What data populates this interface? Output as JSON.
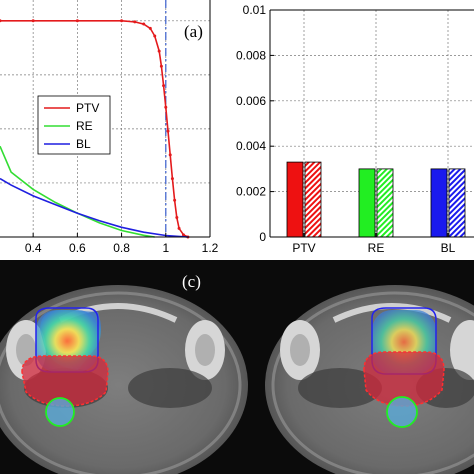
{
  "panels": {
    "a": "(a)",
    "c": "(c)"
  },
  "chart_data": [
    {
      "type": "line",
      "panel": "a",
      "xlim": [
        0.25,
        1.2
      ],
      "ylim": [
        0,
        1.05
      ],
      "x_ticks": [
        "0.4",
        "0.6",
        "0.8",
        "1",
        "1.2"
      ],
      "grid": true,
      "legend_position": "center-right",
      "reference_line": {
        "x": 1.0,
        "color": "#3a5fcd",
        "style": "dash-dot"
      },
      "series": [
        {
          "name": "PTV",
          "color": "#e41a1c",
          "marker": "dot",
          "x": [
            0.25,
            0.4,
            0.6,
            0.8,
            0.86,
            0.9,
            0.93,
            0.95,
            0.97,
            0.98,
            0.99,
            1.0,
            1.01,
            1.02,
            1.03,
            1.04,
            1.05,
            1.06,
            1.08,
            1.1
          ],
          "y": [
            1.0,
            1.0,
            1.0,
            1.0,
            0.995,
            0.985,
            0.965,
            0.93,
            0.86,
            0.79,
            0.7,
            0.6,
            0.49,
            0.38,
            0.27,
            0.17,
            0.09,
            0.04,
            0.01,
            0.0
          ]
        },
        {
          "name": "RE",
          "color": "#33dd33",
          "x": [
            0.25,
            0.3,
            0.4,
            0.5,
            0.6,
            0.7,
            0.8,
            0.9,
            0.95
          ],
          "y": [
            0.42,
            0.3,
            0.22,
            0.16,
            0.11,
            0.065,
            0.03,
            0.008,
            0.0
          ]
        },
        {
          "name": "BL",
          "color": "#1f1fe0",
          "x": [
            0.25,
            0.3,
            0.4,
            0.5,
            0.6,
            0.7,
            0.8,
            0.9,
            1.0,
            1.1
          ],
          "y": [
            0.27,
            0.24,
            0.19,
            0.15,
            0.11,
            0.075,
            0.045,
            0.022,
            0.007,
            0.0
          ]
        }
      ]
    },
    {
      "type": "bar",
      "panel": "b",
      "categories": [
        "PTV",
        "RE",
        "BL"
      ],
      "ylim": [
        0,
        0.01
      ],
      "y_ticks": [
        "0",
        "0.002",
        "0.004",
        "0.006",
        "0.008",
        "0.01"
      ],
      "grid": true,
      "series": [
        {
          "style": "solid",
          "values": [
            0.0033,
            0.003,
            0.003
          ]
        },
        {
          "style": "hatched",
          "values": [
            0.0033,
            0.003,
            0.003
          ]
        }
      ],
      "colors": [
        "#ee1111",
        "#22ee22",
        "#1a1aee"
      ]
    }
  ]
}
